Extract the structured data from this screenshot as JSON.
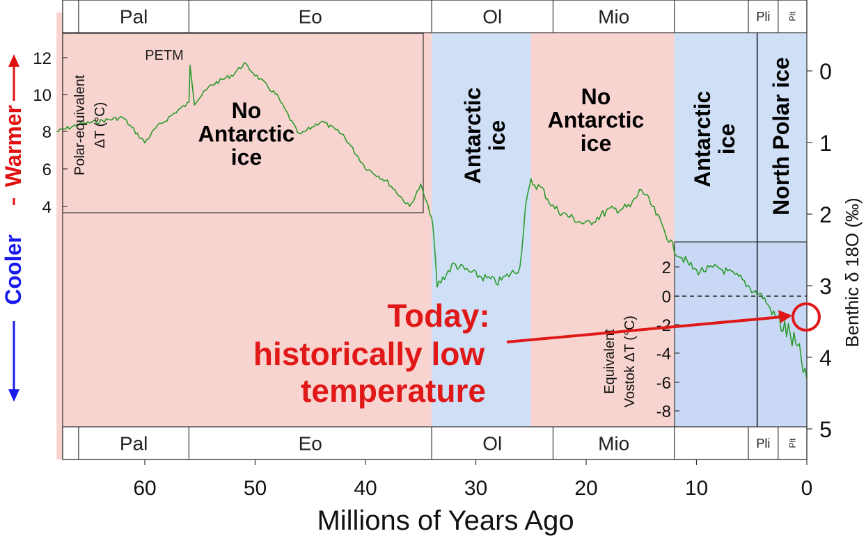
{
  "chart_data": {
    "type": "line",
    "xlabel": "Millions of Years Ago",
    "ylabel_right": "Benthic δ 18O (‰)",
    "xlim": [
      68,
      0
    ],
    "ylim_right": [
      -0.4,
      5
    ],
    "x_ticks": [
      "60",
      "50",
      "40",
      "30",
      "20",
      "10",
      "0"
    ],
    "right_ticks": [
      "0",
      "1",
      "2",
      "3",
      "4",
      "5"
    ],
    "inset_left": {
      "ylabel_line1": "Polar-equivalent",
      "ylabel_line2": "ΔT (°C)",
      "ticks": [
        "12",
        "10",
        "8",
        "6",
        "4"
      ]
    },
    "inset_right": {
      "ylabel_line1": "Equivalent",
      "ylabel_line2": "Vostok ΔT (°C)",
      "ticks": [
        "2",
        "0",
        "-2",
        "-4",
        "-6",
        "-8"
      ]
    },
    "side_label": {
      "cooler": "Cooler",
      "warmer": "Warmer",
      "cooler_color": "#1a1aee",
      "warmer_color": "#e01010"
    },
    "epochs": [
      {
        "name": "Pal",
        "start": 66,
        "end": 56
      },
      {
        "name": "Eo",
        "start": 56,
        "end": 34
      },
      {
        "name": "Ol",
        "start": 34,
        "end": 23
      },
      {
        "name": "Mio",
        "start": 23,
        "end": 12
      },
      {
        "name": "Pli",
        "start": 5.3,
        "end": 2.6
      },
      {
        "name": "Plt",
        "start": 2.6,
        "end": 0
      }
    ],
    "regions": [
      {
        "label": "No Antarctic ice",
        "start": 68,
        "end": 34,
        "color": "#f8d4d0"
      },
      {
        "label": "Antarctic ice",
        "start": 34,
        "end": 25,
        "color": "#cfe0f6"
      },
      {
        "label": "No Antarctic ice",
        "start": 25,
        "end": 12,
        "color": "#f8d4d0"
      },
      {
        "label": "Antarctic ice",
        "start": 12,
        "end": 0,
        "color": "#cfe0f6"
      },
      {
        "label": "North Polar ice",
        "start": 4.5,
        "end": 0,
        "color": "#cfe0f6"
      }
    ],
    "annotations": {
      "petm": "PETM",
      "today_line1": "Today:",
      "today_line2": "historically low",
      "today_line3": "temperature",
      "today_color": "#e01818"
    },
    "series": [
      {
        "color": "#2a9a2a",
        "x": [
          68,
          66,
          64,
          62,
          60,
          59,
          57,
          56,
          55.9,
          55.5,
          54,
          52,
          51,
          50,
          48,
          46,
          44,
          42,
          40,
          38,
          36,
          35,
          34,
          33.8,
          33.5,
          32,
          30,
          28,
          26,
          25.5,
          25,
          24,
          23,
          22,
          20,
          18,
          16,
          15,
          14,
          13,
          12,
          10,
          8,
          6,
          5,
          4,
          3,
          2,
          1.5,
          1,
          0.5,
          0
        ],
        "y": [
          0.85,
          0.75,
          0.7,
          0.65,
          1.0,
          0.8,
          0.55,
          0.45,
          -0.1,
          0.45,
          0.2,
          0.05,
          -0.1,
          0.05,
          0.35,
          0.9,
          0.7,
          0.9,
          1.35,
          1.55,
          1.9,
          1.6,
          2.05,
          2.35,
          3.0,
          2.7,
          2.85,
          2.95,
          2.75,
          1.9,
          1.55,
          1.65,
          1.9,
          2.0,
          2.15,
          1.95,
          1.9,
          1.65,
          1.9,
          2.2,
          2.5,
          2.8,
          2.75,
          2.9,
          3.05,
          3.15,
          3.4,
          3.6,
          3.7,
          3.85,
          4.05,
          4.3
        ]
      }
    ]
  }
}
